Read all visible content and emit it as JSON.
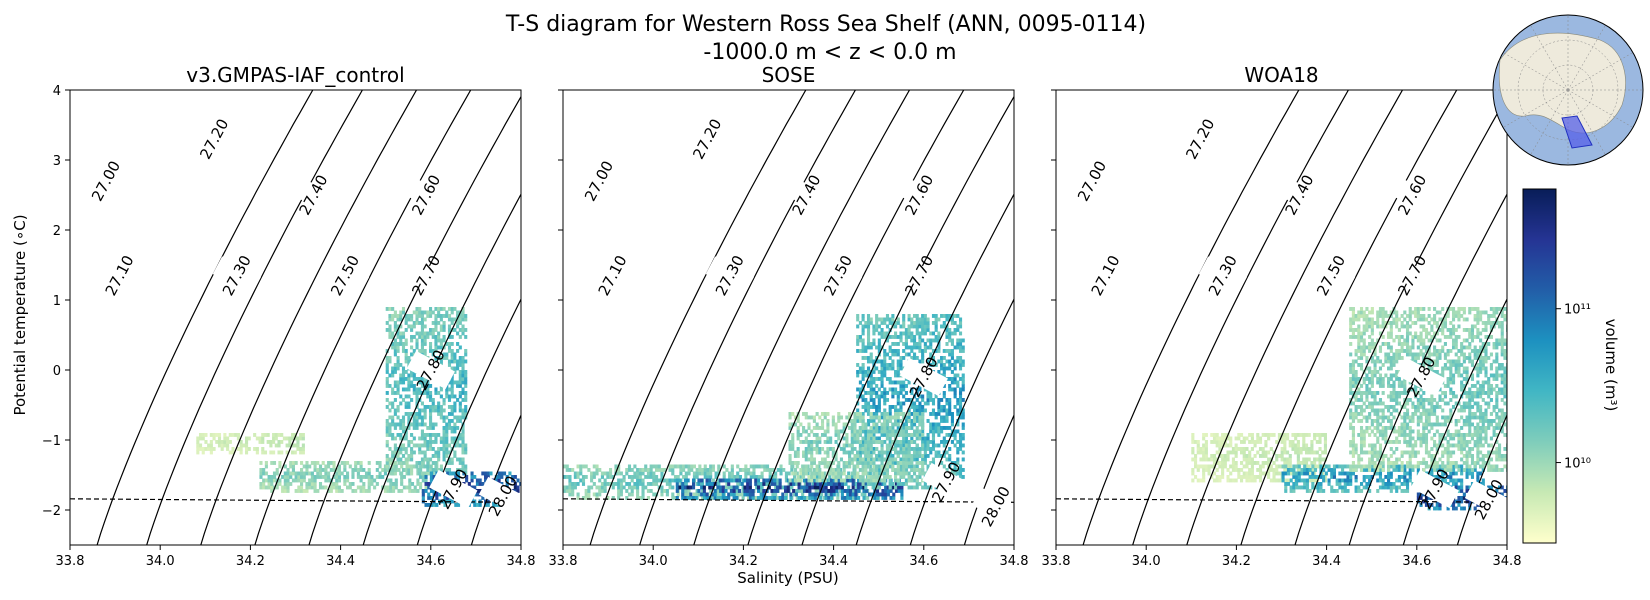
{
  "figure": {
    "title_line1": "T-S diagram for Western Ross Sea Shelf (ANN, 0095-0114)",
    "title_line2": "-1000.0 m < z < 0.0 m",
    "xlabel": "Salinity (PSU)",
    "ylabel": "Potential temperature (∘C)"
  },
  "colorbar": {
    "label": "volume (m³)",
    "ticks": [
      {
        "value": 10000000000.0,
        "label": "10¹⁰"
      },
      {
        "value": 100000000000.0,
        "label": "10¹¹"
      }
    ],
    "range": [
      3000000000.0,
      600000000000.0
    ],
    "colormap": [
      "#ffffcc",
      "#c7e9b4",
      "#7fcdbb",
      "#41b6c4",
      "#1d91c0",
      "#225ea8",
      "#253494",
      "#081d58"
    ]
  },
  "inset_map": {
    "ocean_color": "#9bb8e0",
    "land_color": "#eeeadc",
    "region_color": "#5560e8"
  },
  "chart_data": {
    "type": "heatmap",
    "xlim": [
      33.8,
      34.8
    ],
    "ylim": [
      -2.5,
      4
    ],
    "xticks": [
      33.8,
      34.0,
      34.2,
      34.4,
      34.6,
      34.8
    ],
    "xtick_labels": [
      "33.8",
      "34.0",
      "34.2",
      "34.4",
      "34.6",
      "34.8"
    ],
    "yticks": [
      -2,
      -1,
      0,
      1,
      2,
      3,
      4
    ],
    "ytick_labels": [
      "−2",
      "−1",
      "0",
      "1",
      "2",
      "3",
      "4"
    ],
    "freezing_line": {
      "start": [
        33.8,
        -1.84
      ],
      "end": [
        34.8,
        -1.89
      ],
      "style": "dashed"
    },
    "density_contours": [
      27.0,
      27.1,
      27.2,
      27.3,
      27.4,
      27.5,
      27.6,
      27.7,
      27.8,
      27.9,
      28.0
    ],
    "density_labels": [
      "27.00",
      "27.10",
      "27.20",
      "27.30",
      "27.40",
      "27.50",
      "27.60",
      "27.70",
      "27.80",
      "27.90",
      "28.00"
    ],
    "panels": [
      {
        "title": "v3.GMPAS-IAF_control",
        "show_yticklabels": true,
        "label_positions": [
          [
            33.88,
            2.7
          ],
          [
            33.91,
            1.35
          ],
          [
            34.12,
            3.3
          ],
          [
            34.17,
            1.35
          ],
          [
            34.34,
            2.5
          ],
          [
            34.41,
            1.35
          ],
          [
            34.59,
            2.5
          ],
          [
            34.59,
            1.35
          ],
          [
            34.6,
            0.0
          ],
          [
            34.65,
            -1.7
          ],
          [
            34.76,
            -1.8
          ]
        ],
        "blobs": [
          {
            "s": [
              34.22,
              34.62
            ],
            "t": [
              -1.75,
              -1.3
            ],
            "w": 0.28
          },
          {
            "s": [
              34.5,
              34.68
            ],
            "t": [
              -1.5,
              0.9
            ],
            "w": 0.4
          },
          {
            "s": [
              34.58,
              34.8
            ],
            "t": [
              -1.95,
              -1.45
            ],
            "w": 0.85
          },
          {
            "s": [
              34.08,
              34.32
            ],
            "t": [
              -1.2,
              -0.9
            ],
            "w": 0.12
          }
        ]
      },
      {
        "title": "SOSE",
        "show_yticklabels": false,
        "label_positions": [
          [
            33.88,
            2.7
          ],
          [
            33.91,
            1.35
          ],
          [
            34.12,
            3.3
          ],
          [
            34.17,
            1.35
          ],
          [
            34.34,
            2.5
          ],
          [
            34.41,
            1.35
          ],
          [
            34.59,
            2.5
          ],
          [
            34.59,
            1.35
          ],
          [
            34.6,
            -0.1
          ],
          [
            34.65,
            -1.6
          ],
          [
            34.76,
            -1.95
          ]
        ],
        "blobs": [
          {
            "s": [
              33.8,
              34.5
            ],
            "t": [
              -1.85,
              -1.35
            ],
            "w": 0.35
          },
          {
            "s": [
              34.05,
              34.55
            ],
            "t": [
              -1.85,
              -1.55
            ],
            "w": 0.85
          },
          {
            "s": [
              34.45,
              34.69
            ],
            "t": [
              -1.7,
              0.8
            ],
            "w": 0.5
          },
          {
            "s": [
              34.3,
              34.6
            ],
            "t": [
              -1.6,
              -0.6
            ],
            "w": 0.3
          }
        ]
      },
      {
        "title": "WOA18",
        "show_yticklabels": false,
        "label_positions": [
          [
            33.88,
            2.7
          ],
          [
            33.91,
            1.35
          ],
          [
            34.12,
            3.3
          ],
          [
            34.17,
            1.35
          ],
          [
            34.34,
            2.5
          ],
          [
            34.41,
            1.35
          ],
          [
            34.59,
            2.5
          ],
          [
            34.59,
            1.35
          ],
          [
            34.61,
            -0.1
          ],
          [
            34.64,
            -1.7
          ],
          [
            34.76,
            -1.85
          ]
        ],
        "blobs": [
          {
            "s": [
              34.1,
              34.4
            ],
            "t": [
              -1.6,
              -0.9
            ],
            "w": 0.12
          },
          {
            "s": [
              34.3,
              34.75
            ],
            "t": [
              -1.75,
              -1.35
            ],
            "w": 0.55
          },
          {
            "s": [
              34.45,
              34.8
            ],
            "t": [
              -1.45,
              0.9
            ],
            "w": 0.3
          },
          {
            "s": [
              34.6,
              34.8
            ],
            "t": [
              -2.0,
              -1.65
            ],
            "w": 0.9
          }
        ]
      }
    ]
  }
}
